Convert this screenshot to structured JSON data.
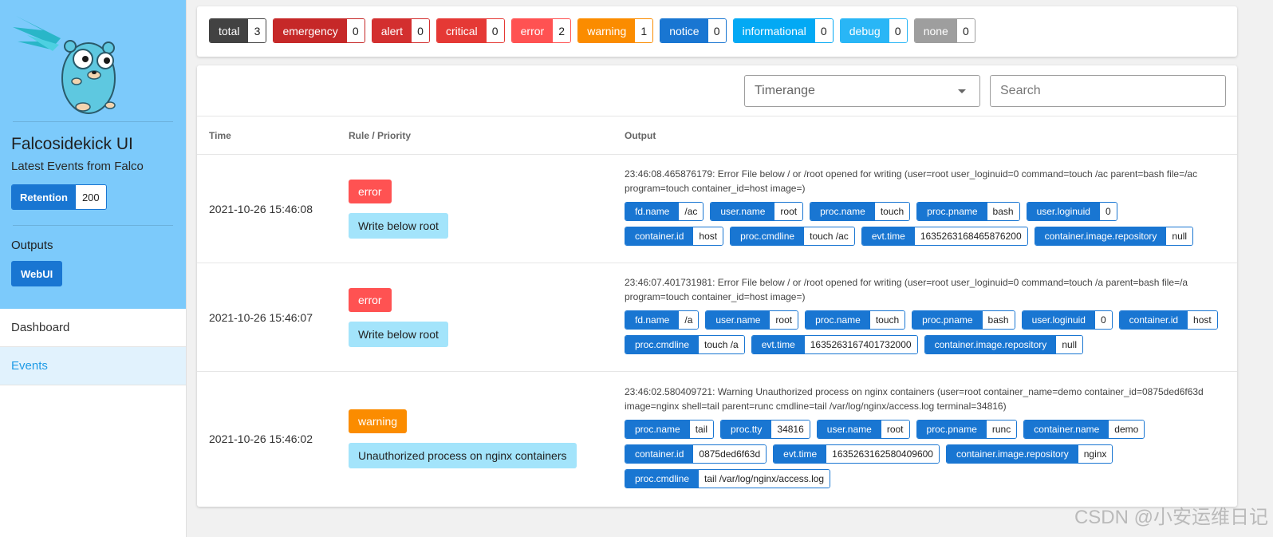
{
  "sidebar": {
    "title": "Falcosidekick UI",
    "subtitle": "Latest Events from Falco",
    "retention": {
      "label": "Retention",
      "value": "200"
    },
    "outputs_label": "Outputs",
    "webui_label": "WebUI",
    "nav": [
      {
        "label": "Dashboard",
        "active": false
      },
      {
        "label": "Events",
        "active": true
      }
    ],
    "logo_icon": "gopher-mascot-icon"
  },
  "counts": [
    {
      "label": "total",
      "value": "3",
      "color": "#424242"
    },
    {
      "label": "emergency",
      "value": "0",
      "color": "#c62828"
    },
    {
      "label": "alert",
      "value": "0",
      "color": "#d32f2f"
    },
    {
      "label": "critical",
      "value": "0",
      "color": "#e53935"
    },
    {
      "label": "error",
      "value": "2",
      "color": "#ff5252"
    },
    {
      "label": "warning",
      "value": "1",
      "color": "#fb8c00"
    },
    {
      "label": "notice",
      "value": "0",
      "color": "#1976d2"
    },
    {
      "label": "informational",
      "value": "0",
      "color": "#03a9f4"
    },
    {
      "label": "debug",
      "value": "0",
      "color": "#29b6f6"
    },
    {
      "label": "none",
      "value": "0",
      "color": "#9e9e9e"
    }
  ],
  "filters": {
    "timerange_label": "Timerange",
    "search_placeholder": "Search"
  },
  "table": {
    "headers": {
      "time": "Time",
      "rule": "Rule / Priority",
      "output": "Output"
    },
    "rows": [
      {
        "time": "2021-10-26 15:46:08",
        "priority": "error",
        "priority_color": "#ff5252",
        "rule": "Write below root",
        "output": "23:46:08.465876179: Error File below / or /root opened for writing (user=root user_loginuid=0 command=touch /ac parent=bash file=/ac program=touch container_id=host image=)",
        "fields": [
          {
            "k": "fd.name",
            "v": "/ac"
          },
          {
            "k": "user.name",
            "v": "root"
          },
          {
            "k": "proc.name",
            "v": "touch"
          },
          {
            "k": "proc.pname",
            "v": "bash"
          },
          {
            "k": "user.loginuid",
            "v": "0"
          },
          {
            "k": "container.id",
            "v": "host"
          },
          {
            "k": "proc.cmdline",
            "v": "touch /ac"
          },
          {
            "k": "evt.time",
            "v": "1635263168465876200"
          },
          {
            "k": "container.image.repository",
            "v": "null"
          }
        ]
      },
      {
        "time": "2021-10-26 15:46:07",
        "priority": "error",
        "priority_color": "#ff5252",
        "rule": "Write below root",
        "output": "23:46:07.401731981: Error File below / or /root opened for writing (user=root user_loginuid=0 command=touch /a parent=bash file=/a program=touch container_id=host image=)",
        "fields": [
          {
            "k": "fd.name",
            "v": "/a"
          },
          {
            "k": "user.name",
            "v": "root"
          },
          {
            "k": "proc.name",
            "v": "touch"
          },
          {
            "k": "proc.pname",
            "v": "bash"
          },
          {
            "k": "user.loginuid",
            "v": "0"
          },
          {
            "k": "container.id",
            "v": "host"
          },
          {
            "k": "proc.cmdline",
            "v": "touch /a"
          },
          {
            "k": "evt.time",
            "v": "1635263167401732000"
          },
          {
            "k": "container.image.repository",
            "v": "null"
          }
        ]
      },
      {
        "time": "2021-10-26 15:46:02",
        "priority": "warning",
        "priority_color": "#fb8c00",
        "rule": "Unauthorized process on nginx containers",
        "output": "23:46:02.580409721: Warning Unauthorized process on nginx containers (user=root container_name=demo container_id=0875ded6f63d image=nginx shell=tail parent=runc cmdline=tail /var/log/nginx/access.log terminal=34816)",
        "fields": [
          {
            "k": "proc.name",
            "v": "tail"
          },
          {
            "k": "proc.tty",
            "v": "34816"
          },
          {
            "k": "user.name",
            "v": "root"
          },
          {
            "k": "proc.pname",
            "v": "runc"
          },
          {
            "k": "container.name",
            "v": "demo"
          },
          {
            "k": "container.id",
            "v": "0875ded6f63d"
          },
          {
            "k": "evt.time",
            "v": "1635263162580409600"
          },
          {
            "k": "container.image.repository",
            "v": "nginx"
          },
          {
            "k": "proc.cmdline",
            "v": "tail /var/log/nginx/access.log"
          }
        ]
      }
    ]
  },
  "watermark": "CSDN @小安运维日记"
}
